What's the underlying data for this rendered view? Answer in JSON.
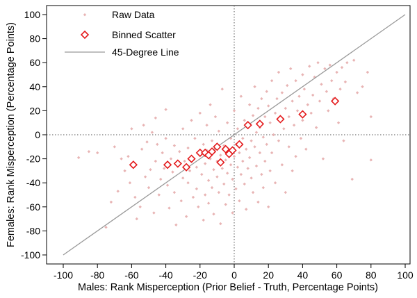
{
  "chart_data": {
    "type": "scatter",
    "xlabel": "Males: Rank Misperception (Prior Belief - Truth, Percentage Points)",
    "ylabel": "Females: Rank Misperception (Percentage Points)",
    "xlim": [
      -100,
      100
    ],
    "ylim": [
      -100,
      100
    ],
    "xticks": [
      "-100",
      "-80",
      "-60",
      "-40",
      "-20",
      "0",
      "20",
      "40",
      "60",
      "80",
      "100"
    ],
    "yticks": [
      "100",
      "80",
      "60",
      "40",
      "20",
      "0",
      "-20",
      "-40",
      "-60",
      "-80",
      "-100"
    ],
    "grid": false,
    "reference_lines": {
      "x": 0,
      "y": 0,
      "style": "dotted"
    },
    "legend_position": "top-left",
    "legend": [
      "Raw Data",
      "Binned Scatter",
      "45-Degree Line"
    ],
    "series": [
      {
        "name": "Raw Data",
        "kind": "scatter",
        "marker": "small-diamond",
        "color": "#e8b4b4",
        "points": [
          [
            -91,
            -19
          ],
          [
            -80,
            -15
          ],
          [
            -75,
            -77
          ],
          [
            -72,
            -56
          ],
          [
            -68,
            -47
          ],
          [
            -66,
            -20
          ],
          [
            -64,
            -30
          ],
          [
            -62,
            -18
          ],
          [
            -61,
            -40
          ],
          [
            -60,
            5
          ],
          [
            -59,
            -25
          ],
          [
            -58,
            -52
          ],
          [
            -57,
            -70
          ],
          [
            -55,
            -60
          ],
          [
            -54,
            -12
          ],
          [
            -52,
            -35
          ],
          [
            -51,
            -6
          ],
          [
            -50,
            -44
          ],
          [
            -49,
            -29
          ],
          [
            -48,
            2
          ],
          [
            -47,
            -65
          ],
          [
            -46,
            -22
          ],
          [
            -45,
            -8
          ],
          [
            -44,
            -50
          ],
          [
            -43,
            -37
          ],
          [
            -42,
            -15
          ],
          [
            -41,
            -28
          ],
          [
            -40,
            -3
          ],
          [
            -40,
            21
          ],
          [
            -39,
            -42
          ],
          [
            -38,
            -61
          ],
          [
            -37,
            -20
          ],
          [
            -36,
            -31
          ],
          [
            -35,
            -9
          ],
          [
            -35,
            -48
          ],
          [
            -34,
            -75
          ],
          [
            -33,
            -25
          ],
          [
            -32,
            -14
          ],
          [
            -31,
            -55
          ],
          [
            -30,
            -36
          ],
          [
            -30,
            5
          ],
          [
            -29,
            -22
          ],
          [
            -28,
            -68
          ],
          [
            -27,
            -40
          ],
          [
            -27,
            -11
          ],
          [
            -26,
            -30
          ],
          [
            -25,
            -18
          ],
          [
            -25,
            12
          ],
          [
            -24,
            -52
          ],
          [
            -23,
            -3
          ],
          [
            -22,
            -27
          ],
          [
            -22,
            -45
          ],
          [
            -21,
            -60
          ],
          [
            -20,
            -16
          ],
          [
            -20,
            18
          ],
          [
            -19,
            -33
          ],
          [
            -18,
            -8
          ],
          [
            -18,
            -71
          ],
          [
            -17,
            -24
          ],
          [
            -17,
            -50
          ],
          [
            -16,
            -13
          ],
          [
            -16,
            8
          ],
          [
            -15,
            -38
          ],
          [
            -15,
            -57
          ],
          [
            -14,
            -20
          ],
          [
            -14,
            25
          ],
          [
            -13,
            -5
          ],
          [
            -13,
            -44
          ],
          [
            -12,
            -29
          ],
          [
            -12,
            -66
          ],
          [
            -11,
            -12
          ],
          [
            -11,
            15
          ],
          [
            -10,
            -35
          ],
          [
            -10,
            -22
          ],
          [
            -9,
            -48
          ],
          [
            -9,
            3
          ],
          [
            -8,
            -17
          ],
          [
            -8,
            -74
          ],
          [
            -7,
            -28
          ],
          [
            -7,
            38
          ],
          [
            -6,
            -9
          ],
          [
            -6,
            -41
          ],
          [
            -5,
            -21
          ],
          [
            -5,
            -58
          ],
          [
            -4,
            -32
          ],
          [
            -4,
            10
          ],
          [
            -3,
            -14
          ],
          [
            -3,
            -50
          ],
          [
            -2,
            -25
          ],
          [
            -2,
            -3
          ],
          [
            -1,
            -37
          ],
          [
            -1,
            -65
          ],
          [
            0,
            -18
          ],
          [
            0,
            20
          ],
          [
            1,
            -8
          ],
          [
            1,
            -45
          ],
          [
            2,
            -27
          ],
          [
            2,
            5
          ],
          [
            3,
            -15
          ],
          [
            3,
            -55
          ],
          [
            4,
            -33
          ],
          [
            4,
            32
          ],
          [
            5,
            -3
          ],
          [
            5,
            -22
          ],
          [
            6,
            -41
          ],
          [
            6,
            12
          ],
          [
            7,
            -12
          ],
          [
            7,
            -62
          ],
          [
            8,
            -28
          ],
          [
            8,
            8
          ],
          [
            9,
            -19
          ],
          [
            9,
            25
          ],
          [
            10,
            -36
          ],
          [
            10,
            -5
          ],
          [
            11,
            -48
          ],
          [
            11,
            16
          ],
          [
            12,
            -10
          ],
          [
            12,
            40
          ],
          [
            13,
            -26
          ],
          [
            13,
            2
          ],
          [
            14,
            -56
          ],
          [
            14,
            22
          ],
          [
            15,
            -15
          ],
          [
            15,
            6
          ],
          [
            16,
            -33
          ],
          [
            16,
            30
          ],
          [
            17,
            -2
          ],
          [
            17,
            -44
          ],
          [
            18,
            15
          ],
          [
            18,
            -22
          ],
          [
            19,
            36
          ],
          [
            19,
            -8
          ],
          [
            20,
            -60
          ],
          [
            20,
            24
          ],
          [
            21,
            10
          ],
          [
            21,
            -30
          ],
          [
            22,
            45
          ],
          [
            22,
            -15
          ],
          [
            23,
            0
          ],
          [
            24,
            18
          ],
          [
            24,
            -40
          ],
          [
            25,
            30
          ],
          [
            26,
            -5
          ],
          [
            26,
            52
          ],
          [
            27,
            12
          ],
          [
            28,
            -25
          ],
          [
            28,
            35
          ],
          [
            29,
            5
          ],
          [
            30,
            -48
          ],
          [
            30,
            22
          ],
          [
            31,
            41
          ],
          [
            32,
            -10
          ],
          [
            32,
            15
          ],
          [
            33,
            55
          ],
          [
            34,
            -30
          ],
          [
            34,
            28
          ],
          [
            35,
            8
          ],
          [
            36,
            45
          ],
          [
            36,
            -18
          ],
          [
            37,
            20
          ],
          [
            38,
            32
          ],
          [
            39,
            -3
          ],
          [
            40,
            50
          ],
          [
            40,
            12
          ],
          [
            41,
            38
          ],
          [
            42,
            -12
          ],
          [
            43,
            25
          ],
          [
            44,
            57
          ],
          [
            45,
            18
          ],
          [
            46,
            33
          ],
          [
            47,
            48
          ],
          [
            48,
            6
          ],
          [
            49,
            60
          ],
          [
            50,
            28
          ],
          [
            51,
            42
          ],
          [
            52,
            -20
          ],
          [
            53,
            55
          ],
          [
            54,
            36
          ],
          [
            55,
            20
          ],
          [
            56,
            58
          ],
          [
            57,
            45
          ],
          [
            58,
            30
          ],
          [
            60,
            52
          ],
          [
            61,
            10
          ],
          [
            62,
            38
          ],
          [
            63,
            56
          ],
          [
            64,
            -5
          ],
          [
            65,
            44
          ],
          [
            66,
            60
          ],
          [
            69,
            -37
          ],
          [
            70,
            62
          ],
          [
            72,
            35
          ],
          [
            75,
            40
          ],
          [
            78,
            52
          ],
          [
            80,
            15
          ],
          [
            80,
            -21
          ],
          [
            -85,
            -14
          ],
          [
            -70,
            -10
          ],
          [
            -53,
            8
          ],
          [
            -46,
            14
          ]
        ]
      },
      {
        "name": "Binned Scatter",
        "kind": "scatter",
        "marker": "hollow-diamond",
        "color": "#e41a1c",
        "points": [
          [
            -59,
            -25
          ],
          [
            -39,
            -25
          ],
          [
            -33,
            -24
          ],
          [
            -28,
            -27
          ],
          [
            -25,
            -20
          ],
          [
            -20,
            -15
          ],
          [
            -17,
            -15
          ],
          [
            -15,
            -17
          ],
          [
            -13,
            -14
          ],
          [
            -10,
            -10
          ],
          [
            -8,
            -23
          ],
          [
            -5,
            -12
          ],
          [
            -3,
            -16
          ],
          [
            -1,
            -13
          ],
          [
            3,
            -8
          ],
          [
            8,
            8
          ],
          [
            15,
            9
          ],
          [
            27,
            13
          ],
          [
            40,
            17
          ],
          [
            59,
            28
          ]
        ]
      },
      {
        "name": "45-Degree Line",
        "kind": "line",
        "color": "#999999",
        "points": [
          [
            -100,
            -100
          ],
          [
            100,
            100
          ]
        ]
      }
    ]
  }
}
